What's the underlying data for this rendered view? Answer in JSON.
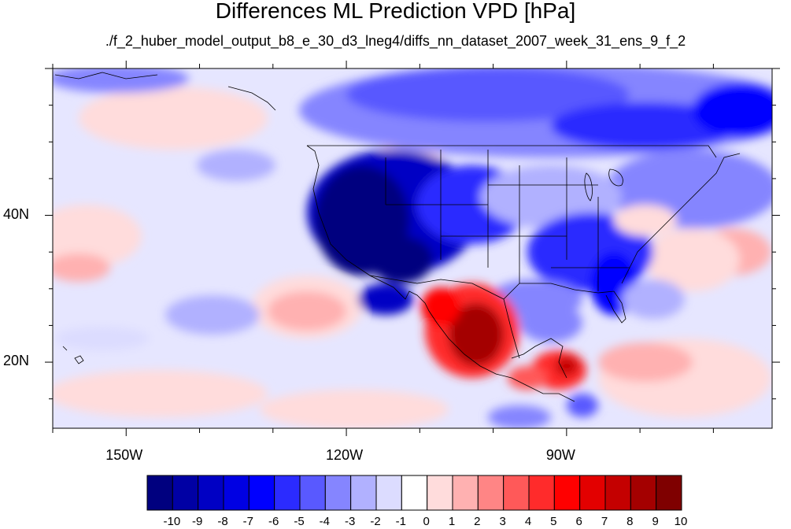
{
  "title": "Differences ML Prediction VPD [hPa]",
  "subtitle": "./f_2_huber_model_output_b8_e_30_d3_lneg4/diffs_nn_dataset_2007_week_31_ens_9_f_2",
  "lat_labels": [
    {
      "value": 40,
      "text": "40N"
    },
    {
      "value": 20,
      "text": "20N"
    }
  ],
  "lon_labels": [
    {
      "value": -150,
      "text": "150W"
    },
    {
      "value": -120,
      "text": "120W"
    },
    {
      "value": -90,
      "text": "90W"
    }
  ],
  "colorbar": {
    "levels": [
      "-10",
      "-9",
      "-8",
      "-7",
      "-6",
      "-5",
      "-4",
      "-3",
      "-2",
      "-1",
      "0",
      "1",
      "2",
      "3",
      "4",
      "5",
      "6",
      "7",
      "8",
      "9",
      "10"
    ],
    "colors": [
      "#00007f",
      "#0000a4",
      "#0000c4",
      "#0000e3",
      "#0000ff",
      "#2b2bff",
      "#5959ff",
      "#8585ff",
      "#b1b1ff",
      "#dcdcff",
      "#ffffff",
      "#ffdcdc",
      "#ffb1b1",
      "#ff8585",
      "#ff5959",
      "#ff2b2b",
      "#ff0000",
      "#e30000",
      "#c40000",
      "#a40000",
      "#7f0000"
    ]
  },
  "map": {
    "lon_range": [
      -160,
      -62
    ],
    "lat_range": [
      11,
      60
    ],
    "ocean_color": "#e6e6ff"
  }
}
